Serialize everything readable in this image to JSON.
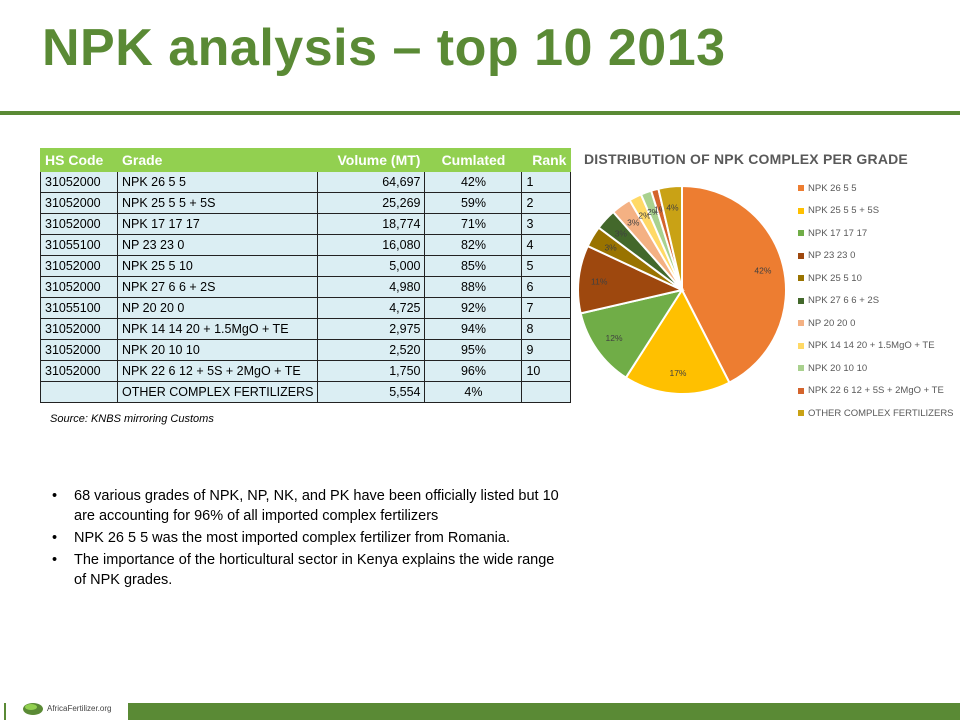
{
  "slide": {
    "title": "NPK analysis – top 10 2013",
    "source": "Source: KNBS mirroring Customs",
    "logo_text": "AfricaFertilizer.org"
  },
  "table": {
    "headers": [
      "HS Code",
      "Grade",
      "Volume (MT)",
      "Cumlated",
      "Rank"
    ],
    "rows": [
      [
        "31052000",
        "NPK 26 5 5",
        "64,697",
        "42%",
        "1"
      ],
      [
        "31052000",
        "NPK 25 5 5 + 5S",
        "25,269",
        "59%",
        "2"
      ],
      [
        "31052000",
        "NPK 17 17 17",
        "18,774",
        "71%",
        "3"
      ],
      [
        "31055100",
        "NP 23 23 0",
        "16,080",
        "82%",
        "4"
      ],
      [
        "31052000",
        "NPK 25 5 10",
        "5,000",
        "85%",
        "5"
      ],
      [
        "31052000",
        "NPK 27 6 6 + 2S",
        "4,980",
        "88%",
        "6"
      ],
      [
        "31055100",
        "NP 20 20 0",
        "4,725",
        "92%",
        "7"
      ],
      [
        "31052000",
        "NPK 14 14 20 + 1.5MgO + TE",
        "2,975",
        "94%",
        "8"
      ],
      [
        "31052000",
        "NPK 20 10 10",
        "2,520",
        "95%",
        "9"
      ],
      [
        "31052000",
        "NPK 22 6 12 + 5S + 2MgO + TE",
        "1,750",
        "96%",
        "10"
      ],
      [
        "",
        "OTHER COMPLEX FERTILIZERS",
        "5,554",
        "4%",
        ""
      ]
    ]
  },
  "bullets": [
    "68 various grades of NPK, NP, NK, and PK have been officially listed but 10 are accounting for 96% of all imported complex fertilizers",
    "NPK 26 5 5 was the most imported complex fertilizer from Romania.",
    " The importance of the horticultural sector in Kenya explains the wide range of NPK grades."
  ],
  "chart_data": {
    "type": "pie",
    "title": "DISTRIBUTION OF NPK COMPLEX PER GRADE",
    "legend_position": "right",
    "categories": [
      "NPK 26 5 5",
      "NPK 25 5 5 + 5S",
      "NPK 17 17 17",
      "NP 23 23 0",
      "NPK 25 5 10",
      "NPK 27 6 6 + 2S",
      "NP 20 20 0",
      "NPK 14 14 20 + 1.5MgO + TE",
      "NPK 20 10 10",
      "NPK 22 6 12 + 5S + 2MgO + TE",
      "OTHER COMPLEX FERTILIZERS"
    ],
    "values": [
      64697,
      25269,
      18774,
      16080,
      5000,
      4980,
      4725,
      2975,
      2520,
      1750,
      5554
    ],
    "data_labels": [
      "42%",
      "17%",
      "12%",
      "11%",
      "3%",
      "3%",
      "3%",
      "2%",
      "2%",
      "1%",
      "4%"
    ],
    "colors": [
      "#ed7d31",
      "#ffc000",
      "#70ad47",
      "#9e480e",
      "#997300",
      "#43682b",
      "#f4b183",
      "#ffd966",
      "#a9d18e",
      "#d4642c",
      "#c9a215"
    ]
  }
}
